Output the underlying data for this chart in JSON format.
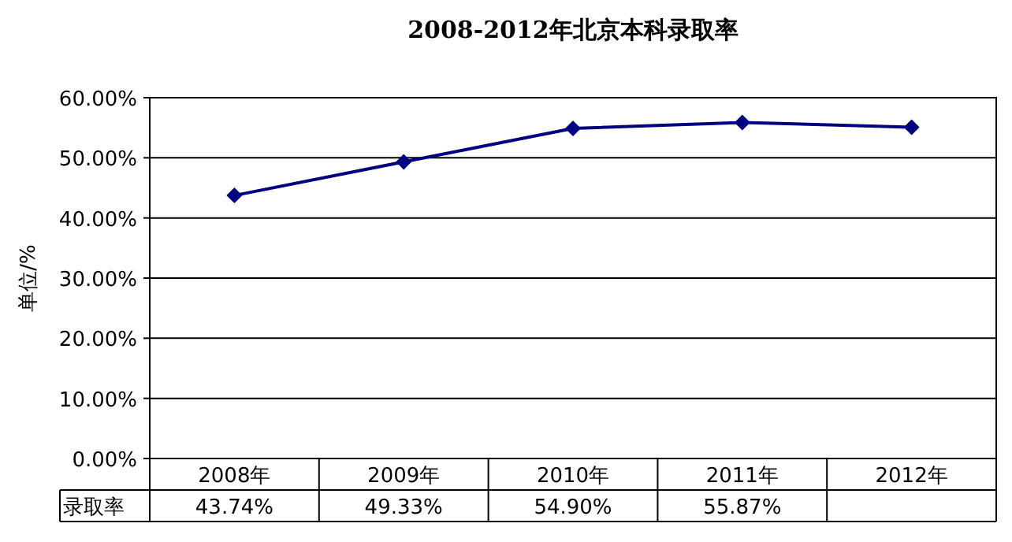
{
  "chart_data": {
    "type": "line",
    "title": "2008-2012年北京本科录取率",
    "ylabel": "单位/%",
    "categories": [
      "2008年",
      "2009年",
      "2010年",
      "2011年",
      "2012年"
    ],
    "series": [
      {
        "name": "录取率",
        "color": "#000080",
        "values": [
          43.74,
          49.33,
          54.9,
          55.87,
          55.1
        ],
        "value_labels": [
          "43.74%",
          "49.33%",
          "54.90%",
          "55.87%",
          null
        ]
      }
    ],
    "ylim": [
      0,
      60
    ],
    "yticks": [
      {
        "value": 0,
        "label": "0.00%"
      },
      {
        "value": 10,
        "label": "10.00%"
      },
      {
        "value": 20,
        "label": "20.00%"
      },
      {
        "value": 30,
        "label": "30.00%"
      },
      {
        "value": 40,
        "label": "40.00%"
      },
      {
        "value": 50,
        "label": "50.00%"
      },
      {
        "value": 60,
        "label": "60.00%"
      }
    ],
    "grid": "y",
    "marker": "diamond",
    "line_style": "solid"
  }
}
